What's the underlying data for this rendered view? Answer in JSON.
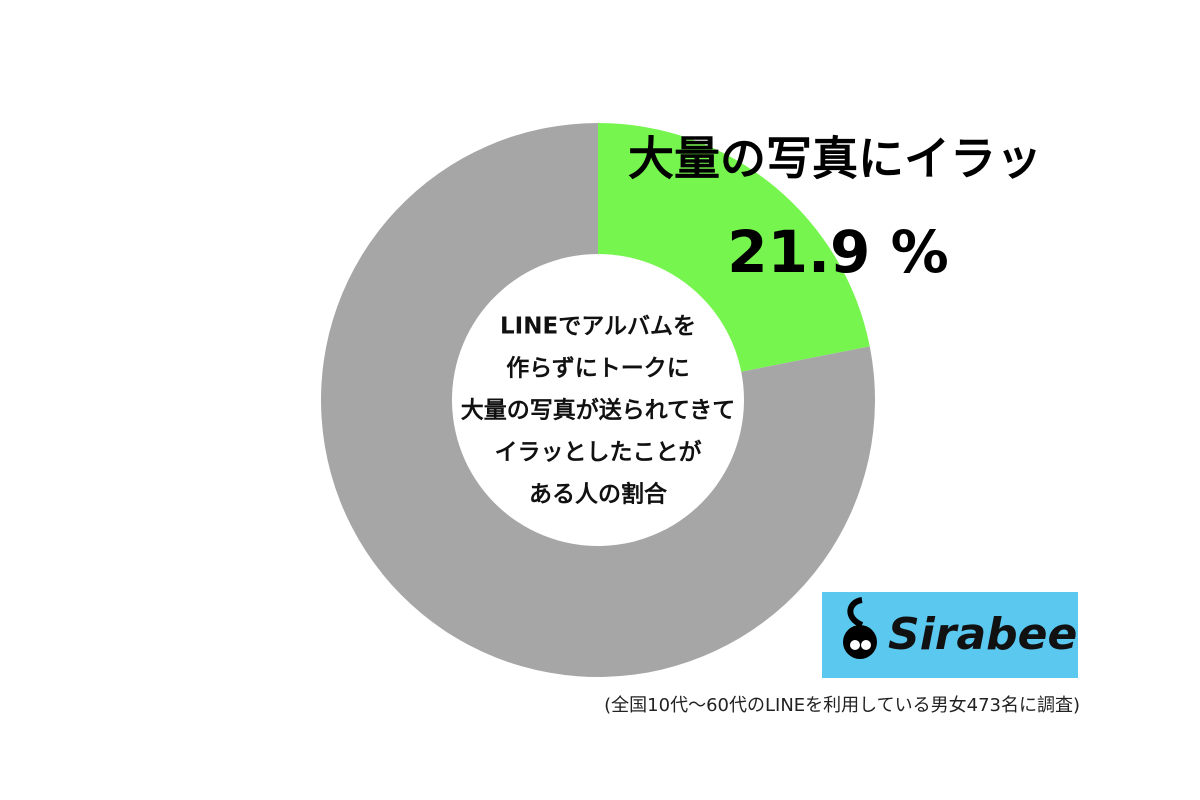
{
  "chart_data": {
    "type": "donut",
    "categories": [
      "大量の写真にイラッ",
      null
    ],
    "values": [
      21.9,
      78.1
    ],
    "value_labels": [
      "21.9 %",
      null
    ],
    "colors": [
      "#77f54f",
      "#a6a6a6"
    ],
    "center_text": [
      "LINEでアルバムを",
      "作らずにトークに",
      "大量の写真が送られてきて",
      "イラッとしたことが",
      "ある人の割合"
    ],
    "logo": "Sirabee",
    "note": "(全国10代〜60代のLINEを利用している男女473名に調査)"
  }
}
